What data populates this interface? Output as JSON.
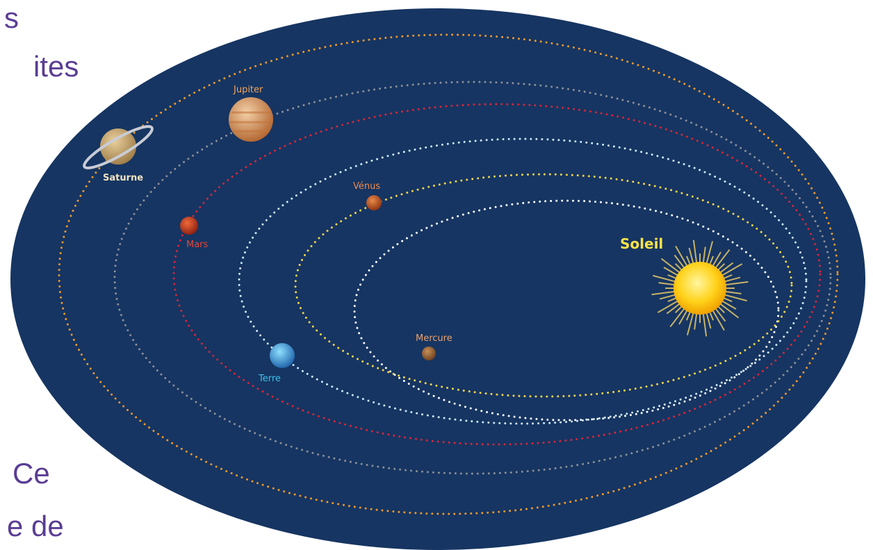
{
  "slide_text": [
    "s",
    "ites",
    "Ce",
    "e de"
  ],
  "diagram": {
    "sun": {
      "label": "Soleil"
    },
    "planets": [
      {
        "label": "Mercure"
      },
      {
        "label": "Vénus"
      },
      {
        "label": "Terre"
      },
      {
        "label": "Mars"
      },
      {
        "label": "Jupiter"
      },
      {
        "label": "Saturne"
      }
    ]
  }
}
